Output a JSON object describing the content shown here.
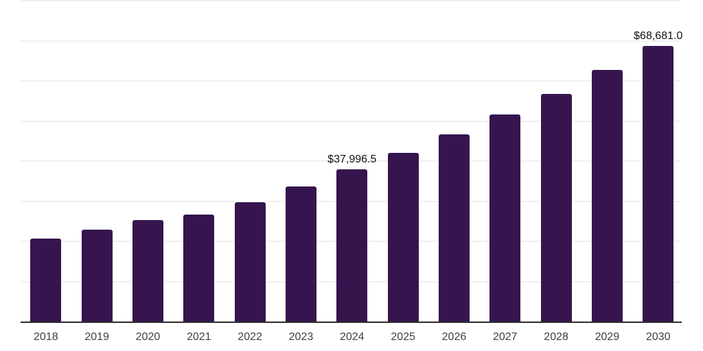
{
  "chart_data": {
    "type": "bar",
    "categories": [
      "2018",
      "2019",
      "2020",
      "2021",
      "2022",
      "2023",
      "2024",
      "2025",
      "2026",
      "2027",
      "2028",
      "2029",
      "2030"
    ],
    "values": [
      20700,
      22950,
      25340,
      26700,
      29800,
      33730,
      37996.5,
      42100,
      46740,
      51700,
      56840,
      62660,
      68681
    ],
    "data_labels": {
      "2024": "$37,996.5",
      "2030": "$68,681.0"
    },
    "title": "",
    "xlabel": "",
    "ylabel": "",
    "ylim": [
      0,
      80000
    ],
    "gridline_interval": 10000,
    "grid": true,
    "legend": "none",
    "colors": {
      "bar": "#36154F",
      "gridline": "#F0F0F0",
      "axis_line": "#2B2B2B",
      "tick_label": "#404040",
      "data_label": "#111111",
      "background": "#FFFFFF"
    }
  }
}
